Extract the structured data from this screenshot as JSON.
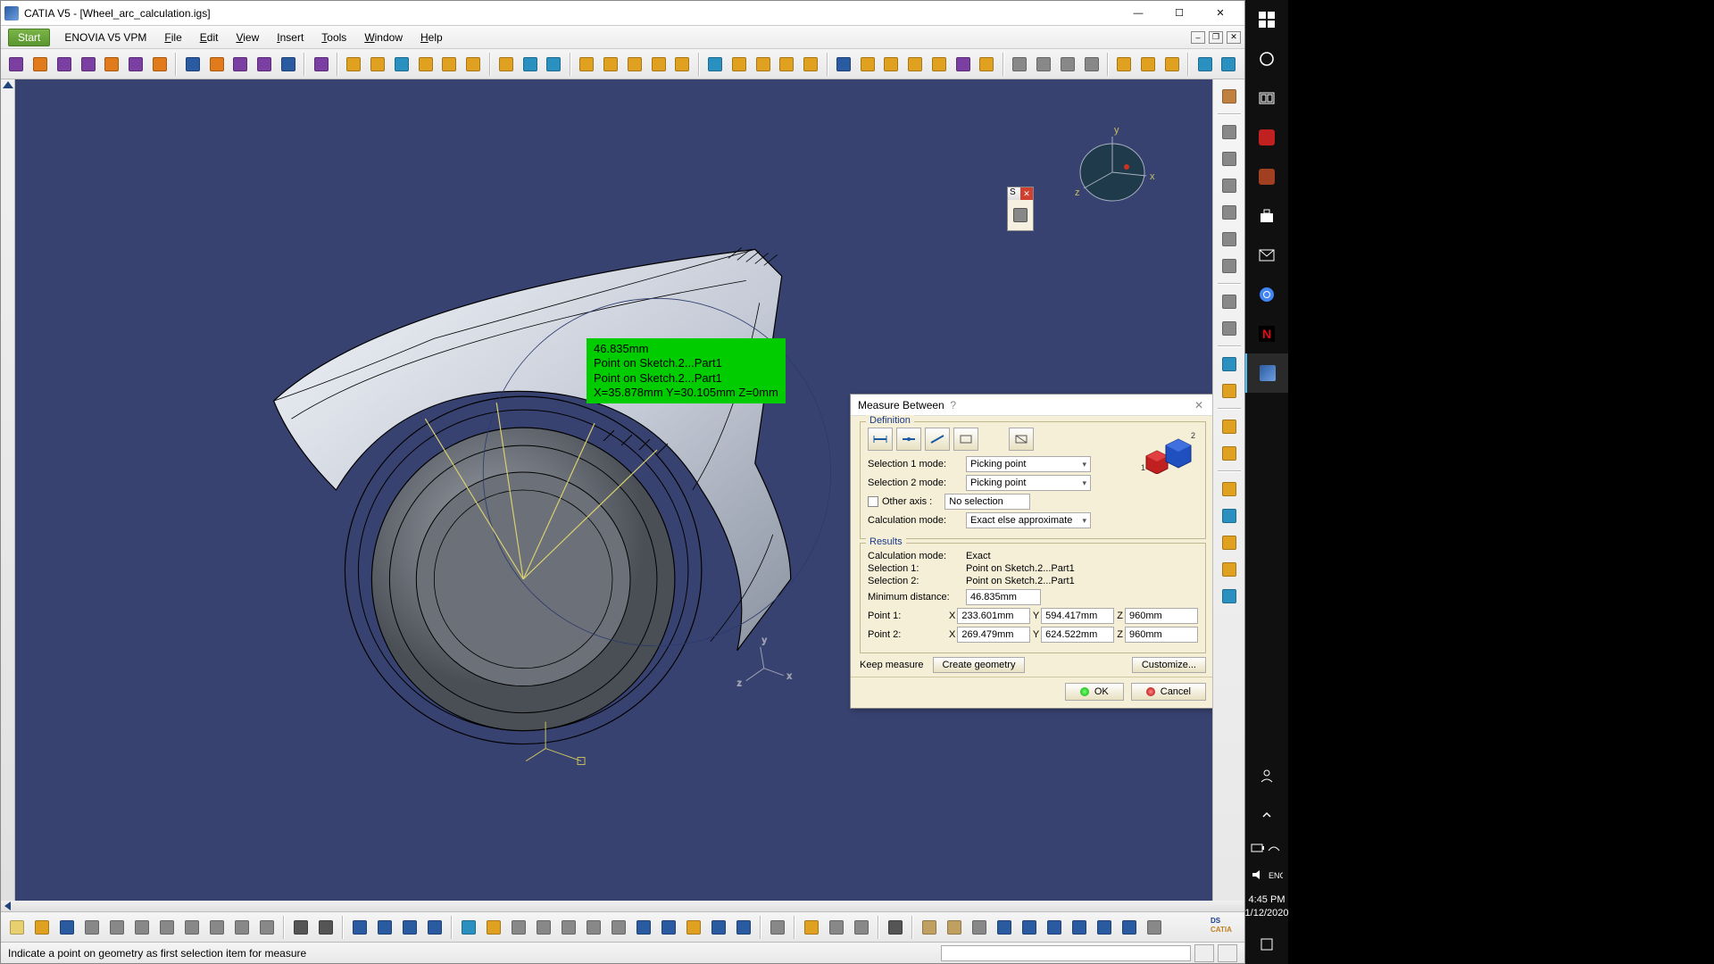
{
  "app": {
    "title": "CATIA V5 - [Wheel_arc_calculation.igs]",
    "statusText": "Indicate a point on geometry as first selection item for measure"
  },
  "menu": {
    "start": "Start",
    "enovia": "ENOVIA V5 VPM",
    "file": "File",
    "edit": "Edit",
    "view": "View",
    "insert": "Insert",
    "tools": "Tools",
    "window": "Window",
    "help": "Help"
  },
  "titlebarButtons": {
    "min": "—",
    "max": "☐",
    "close": "✕"
  },
  "docButtons": {
    "min": "–",
    "max": "❐",
    "close": "✕"
  },
  "compass": {
    "x": "x",
    "y": "y",
    "z": "z"
  },
  "floatPanel": {
    "s": "S",
    "close": "✕"
  },
  "annotation": {
    "distance": "46.835mm",
    "sel1": "Point on Sketch.2...Part1",
    "sel2": "Point on Sketch.2...Part1",
    "coords": "X=35.878mm   Y=30.105mm   Z=0mm"
  },
  "dialog": {
    "title": "Measure Between",
    "definition": "Definition",
    "sel1Label": "Selection 1 mode:",
    "sel2Label": "Selection 2 mode:",
    "pickingPoint": "Picking point",
    "otherAxis": "Other axis :",
    "noSelection": "No selection",
    "calcModeLabel": "Calculation mode:",
    "calcModeValue": "Exact else approximate",
    "results": "Results",
    "calcModeResLabel": "Calculation mode:",
    "calcModeResVal": "Exact",
    "resSel1Label": "Selection 1:",
    "resSel1Val": "Point on Sketch.2...Part1",
    "resSel2Label": "Selection 2:",
    "resSel2Val": "Point on Sketch.2...Part1",
    "minDistLabel": "Minimum distance:",
    "minDistVal": "46.835mm",
    "point1Label": "Point 1:",
    "point2Label": "Point 2:",
    "p1": {
      "x": "233.601mm",
      "y": "594.417mm",
      "z": "960mm"
    },
    "p2": {
      "x": "269.479mm",
      "y": "624.522mm",
      "z": "960mm"
    },
    "keepMeasure": "Keep measure",
    "createGeom": "Create geometry",
    "customize": "Customize...",
    "ok": "OK",
    "cancel": "Cancel",
    "coordLabels": {
      "x": "X",
      "y": "Y",
      "z": "Z"
    }
  },
  "taskbar": {
    "time": "4:45 PM",
    "date": "1/12/2020"
  },
  "colors": {
    "viewport": "#384270",
    "annotationBg": "#00cc00",
    "dialogBg": "#f5efd8",
    "legend": "#1a3a8a"
  },
  "toolbarTopIcons": [
    {
      "c": "#7a3fa0"
    },
    {
      "c": "#e07a1a"
    },
    {
      "c": "#7a3fa0"
    },
    {
      "c": "#7a3fa0"
    },
    {
      "c": "#e07a1a"
    },
    {
      "c": "#7a3fa0"
    },
    {
      "c": "#e07a1a"
    },
    {
      "sep": true
    },
    {
      "c": "#2a5aa0"
    },
    {
      "c": "#e07a1a"
    },
    {
      "c": "#7a3fa0"
    },
    {
      "c": "#7a3fa0"
    },
    {
      "c": "#2a5aa0"
    },
    {
      "sep": true
    },
    {
      "c": "#7a3fa0"
    },
    {
      "sep": true
    },
    {
      "c": "#e0a020"
    },
    {
      "c": "#e0a020"
    },
    {
      "c": "#2a90c0"
    },
    {
      "c": "#e0a020"
    },
    {
      "c": "#e0a020"
    },
    {
      "c": "#e0a020"
    },
    {
      "sep": true
    },
    {
      "c": "#e0a020"
    },
    {
      "c": "#2a90c0"
    },
    {
      "c": "#2a90c0"
    },
    {
      "sep": true
    },
    {
      "c": "#e0a020"
    },
    {
      "c": "#e0a020"
    },
    {
      "c": "#e0a020"
    },
    {
      "c": "#e0a020"
    },
    {
      "c": "#e0a020"
    },
    {
      "sep": true
    },
    {
      "c": "#2a90c0"
    },
    {
      "c": "#e0a020"
    },
    {
      "c": "#e0a020"
    },
    {
      "c": "#e0a020"
    },
    {
      "c": "#e0a020"
    },
    {
      "sep": true
    },
    {
      "c": "#2a5aa0"
    },
    {
      "c": "#e0a020"
    },
    {
      "c": "#e0a020"
    },
    {
      "c": "#e0a020"
    },
    {
      "c": "#e0a020"
    },
    {
      "c": "#7a3fa0"
    },
    {
      "c": "#e0a020"
    },
    {
      "sep": true
    },
    {
      "c": "#888"
    },
    {
      "c": "#888"
    },
    {
      "c": "#888"
    },
    {
      "c": "#888"
    },
    {
      "sep": true
    },
    {
      "c": "#e0a020"
    },
    {
      "c": "#e0a020"
    },
    {
      "c": "#e0a020"
    },
    {
      "sep": true
    },
    {
      "c": "#2a90c0"
    },
    {
      "c": "#2a90c0"
    }
  ],
  "toolbarRightIcons": [
    {
      "c": "#c08040"
    },
    {
      "sep": true
    },
    {
      "c": "#888"
    },
    {
      "c": "#888"
    },
    {
      "c": "#888"
    },
    {
      "c": "#888"
    },
    {
      "c": "#888"
    },
    {
      "c": "#888"
    },
    {
      "sep": true
    },
    {
      "c": "#888"
    },
    {
      "c": "#888"
    },
    {
      "sep": true
    },
    {
      "c": "#2a90c0"
    },
    {
      "c": "#e0a020"
    },
    {
      "sep": true
    },
    {
      "c": "#e0a020"
    },
    {
      "c": "#e0a020"
    },
    {
      "sep": true
    },
    {
      "c": "#e0a020"
    },
    {
      "c": "#2a90c0"
    },
    {
      "c": "#e0a020"
    },
    {
      "c": "#e0a020"
    },
    {
      "c": "#2a90c0"
    }
  ],
  "toolbarBottomIcons": [
    {
      "c": "#e8d070"
    },
    {
      "c": "#e0a020"
    },
    {
      "c": "#2a5aa0"
    },
    {
      "c": "#888"
    },
    {
      "c": "#888"
    },
    {
      "c": "#888"
    },
    {
      "c": "#888"
    },
    {
      "c": "#888"
    },
    {
      "c": "#888"
    },
    {
      "c": "#888"
    },
    {
      "c": "#888"
    },
    {
      "sep": true
    },
    {
      "c": "#555"
    },
    {
      "c": "#555"
    },
    {
      "sep": true
    },
    {
      "c": "#2a5aa0"
    },
    {
      "c": "#2a5aa0"
    },
    {
      "c": "#2a5aa0"
    },
    {
      "c": "#2a5aa0"
    },
    {
      "sep": true
    },
    {
      "c": "#2a90c0"
    },
    {
      "c": "#e0a020"
    },
    {
      "c": "#888"
    },
    {
      "c": "#888"
    },
    {
      "c": "#888"
    },
    {
      "c": "#888"
    },
    {
      "c": "#888"
    },
    {
      "c": "#2a5aa0"
    },
    {
      "c": "#2a5aa0"
    },
    {
      "c": "#e0a020"
    },
    {
      "c": "#2a5aa0"
    },
    {
      "c": "#2a5aa0"
    },
    {
      "sep": true
    },
    {
      "c": "#888"
    },
    {
      "sep": true
    },
    {
      "c": "#e0a020"
    },
    {
      "c": "#888"
    },
    {
      "c": "#888"
    },
    {
      "sep": true
    },
    {
      "c": "#555"
    },
    {
      "sep": true
    },
    {
      "c": "#c0a060"
    },
    {
      "c": "#c0a060"
    },
    {
      "c": "#888"
    },
    {
      "c": "#2a5aa0"
    },
    {
      "c": "#2a5aa0"
    },
    {
      "c": "#2a5aa0"
    },
    {
      "c": "#2a5aa0"
    },
    {
      "c": "#2a5aa0"
    },
    {
      "c": "#2a5aa0"
    },
    {
      "c": "#888"
    }
  ]
}
